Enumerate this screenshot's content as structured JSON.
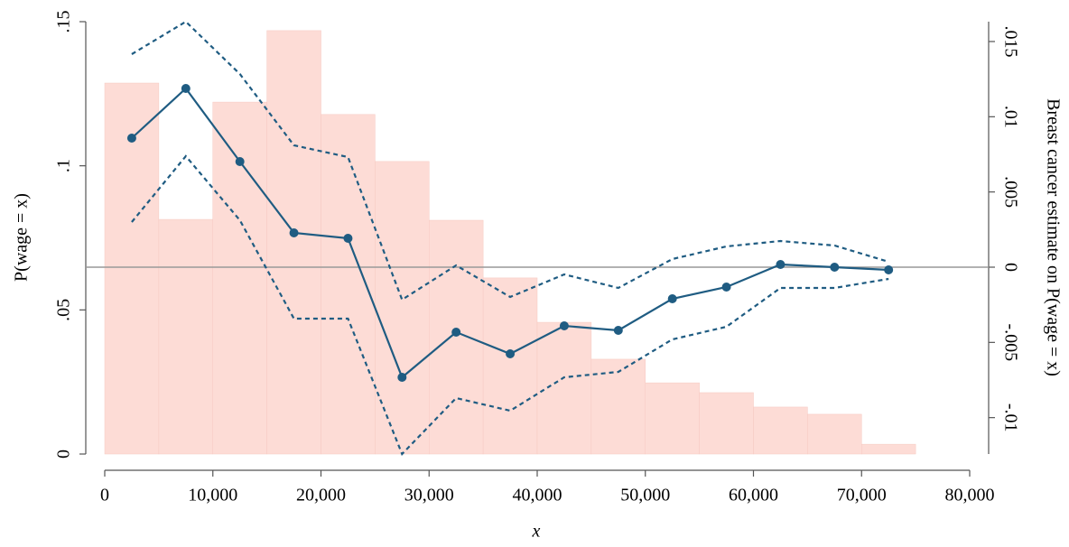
{
  "chart_data": {
    "type": "combo",
    "x_label": "x",
    "y_label": "P(wage = x)",
    "y2_label": "Breast cancer estimate on P(wage = x)",
    "xlim": [
      0,
      80000
    ],
    "xticks": [
      0,
      {
        "value": 10000,
        "label": "10,000"
      },
      {
        "value": 20000,
        "label": "20,000"
      },
      {
        "value": 30000,
        "label": "30,000"
      },
      {
        "value": 40000,
        "label": "40,000"
      },
      {
        "value": 50000,
        "label": "50,000"
      },
      {
        "value": 60000,
        "label": "60,000"
      },
      {
        "value": 70000,
        "label": "70,000"
      },
      {
        "value": 80000,
        "label": "80,000"
      }
    ],
    "ylim": [
      0,
      0.15
    ],
    "yticks": [
      0,
      {
        "value": 0.05,
        "label": ".05"
      },
      {
        "value": 0.1,
        "label": ".1"
      },
      {
        "value": 0.15,
        "label": ".15"
      }
    ],
    "y2lim": [
      -0.01242,
      0.01632
    ],
    "y2ticks": [
      {
        "value": -0.01,
        "label": "-.01"
      },
      {
        "value": -0.005,
        "label": "-.005"
      },
      0,
      {
        "value": 0.005,
        "label": ".005"
      },
      {
        "value": 0.01,
        "label": ".01"
      },
      {
        "value": 0.015,
        "label": ".015"
      }
    ],
    "bins": [
      0,
      5000,
      10000,
      15000,
      20000,
      25000,
      30000,
      35000,
      40000,
      45000,
      50000,
      55000,
      60000,
      65000,
      70000,
      75000
    ],
    "values": [
      0.1287,
      0.0814,
      0.1221,
      0.1469,
      0.1178,
      0.1015,
      0.0811,
      0.0611,
      0.0457,
      0.0329,
      0.0247,
      0.0213,
      0.0163,
      0.0138,
      0.0034
    ],
    "color": "#fddcd6",
    "x": [
      2500,
      7500,
      12500,
      17500,
      22500,
      27500,
      32500,
      37500,
      42500,
      47500,
      52500,
      57500,
      62500,
      67500,
      72500
    ],
    "series": [
      {
        "color": "#1f5c82",
        "axis": "y2",
        "style": "solid",
        "markers": true,
        "values": [
          0.00858,
          0.01188,
          0.00702,
          0.00228,
          0.00192,
          -0.00732,
          -0.00432,
          -0.00576,
          -0.0039,
          -0.0042,
          -0.0021,
          -0.00132,
          0.00018,
          0,
          -0.00018
        ]
      },
      {
        "color": "#1f5c82",
        "axis": "y2",
        "style": "dashed",
        "markers": false,
        "values": [
          0.01416,
          0.01632,
          0.01284,
          0.0081,
          0.00732,
          -0.00216,
          0.00012,
          -0.00198,
          -0.00048,
          -0.00138,
          0.00054,
          0.00138,
          0.00174,
          0.00144,
          0.00036
        ]
      },
      {
        "color": "#1f5c82",
        "axis": "y2",
        "style": "dashed",
        "markers": false,
        "values": [
          0.003,
          0.00738,
          0.00312,
          -0.00342,
          -0.00342,
          -0.01242,
          -0.0087,
          -0.00954,
          -0.00732,
          -0.00696,
          -0.0048,
          -0.00396,
          -0.00138,
          -0.00138,
          -0.00078
        ]
      }
    ],
    "reference_line": {
      "axis": "y2",
      "value": 0,
      "color": "#999999"
    }
  }
}
